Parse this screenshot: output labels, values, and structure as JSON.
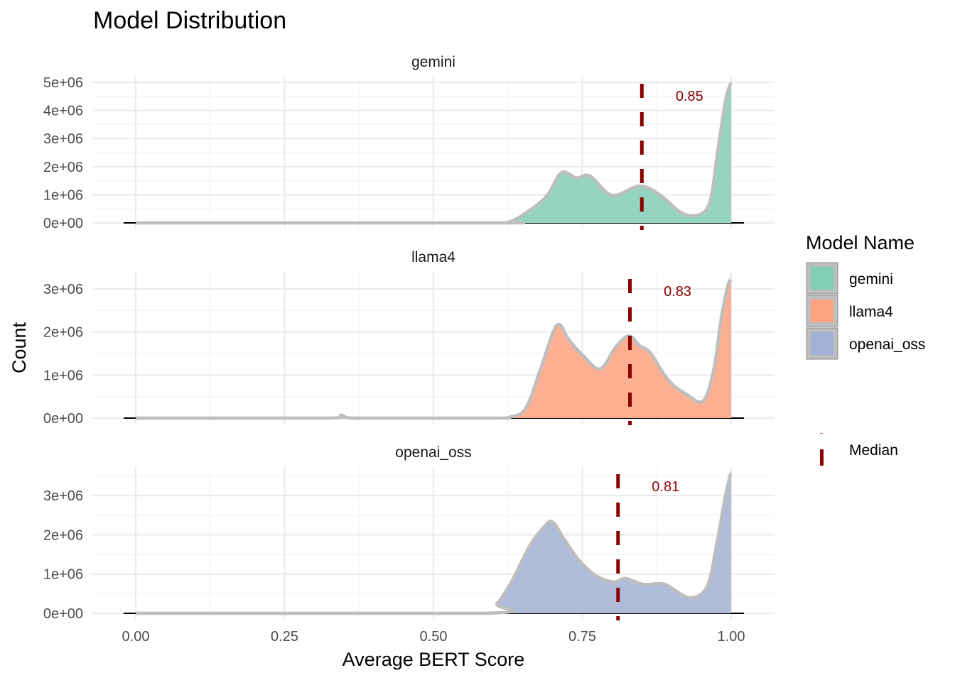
{
  "chart_data": {
    "type": "area",
    "title": "Model Distribution",
    "xlabel": "Average BERT Score",
    "ylabel": "Count",
    "xlim": [
      0,
      1
    ],
    "x_ticks": [
      0,
      0.25,
      0.5,
      0.75,
      1
    ],
    "x_tick_labels": [
      "0.00",
      "0.25",
      "0.50",
      "0.75",
      "1.00"
    ],
    "grid": true,
    "legend": {
      "title": "Model Name",
      "placement": "right",
      "entries": [
        {
          "label": "gemini",
          "color": "#66c2a5"
        },
        {
          "label": "llama4",
          "color": "#fc8d62"
        },
        {
          "label": "openai_oss",
          "color": "#8da0cb"
        }
      ],
      "median_label": "Median",
      "median_color": "#8b0000"
    },
    "panels": [
      {
        "name": "gemini",
        "color": "#66c2a5",
        "ymax": 5000000,
        "y_ticks": [
          0,
          1000000,
          2000000,
          3000000,
          4000000,
          5000000
        ],
        "y_tick_labels": [
          "0e+00",
          "1e+06",
          "2e+06",
          "3e+06",
          "4e+06",
          "5e+06"
        ],
        "median": 0.85,
        "median_label": "0.85",
        "x": [
          0,
          0.6,
          0.625,
          0.655,
          0.69,
          0.715,
          0.74,
          0.763,
          0.8,
          0.846,
          0.88,
          0.917,
          0.947,
          0.965,
          0.977,
          0.99,
          0.998,
          1.0
        ],
        "y": [
          0,
          0,
          20000,
          350000,
          950000,
          1790000,
          1600000,
          1670000,
          980000,
          1310000,
          1000000,
          350000,
          300000,
          800000,
          2500000,
          4300000,
          4900000,
          4900000
        ]
      },
      {
        "name": "llama4",
        "color": "#fc8d62",
        "ymax": 3300000,
        "y_ticks": [
          0,
          1000000,
          2000000,
          3000000
        ],
        "y_tick_labels": [
          "0e+00",
          "1e+06",
          "2e+06",
          "3e+06"
        ],
        "median": 0.83,
        "median_label": "0.83",
        "x": [
          0,
          0.32,
          0.345,
          0.37,
          0.6,
          0.63,
          0.655,
          0.68,
          0.7,
          0.712,
          0.727,
          0.75,
          0.78,
          0.805,
          0.828,
          0.846,
          0.864,
          0.894,
          0.924,
          0.953,
          0.971,
          0.983,
          0.995,
          1.0
        ],
        "y": [
          0,
          0,
          70000,
          0,
          0,
          30000,
          230000,
          1140000,
          1960000,
          2170000,
          1830000,
          1470000,
          1140000,
          1630000,
          1910000,
          1680000,
          1520000,
          890000,
          560000,
          400000,
          1140000,
          2290000,
          3100000,
          3200000
        ]
      },
      {
        "name": "openai_oss",
        "color": "#8da0cb",
        "ymax": 3600000,
        "y_ticks": [
          0,
          1000000,
          2000000,
          3000000
        ],
        "y_tick_labels": [
          "0e+00",
          "1e+06",
          "2e+06",
          "3e+06"
        ],
        "median": 0.81,
        "median_label": "0.81",
        "x": [
          0,
          0.584,
          0.607,
          0.631,
          0.661,
          0.685,
          0.7,
          0.72,
          0.745,
          0.775,
          0.804,
          0.822,
          0.852,
          0.888,
          0.93,
          0.96,
          0.977,
          0.99,
          0.998,
          1.0
        ],
        "y": [
          0,
          0,
          250000,
          800000,
          1700000,
          2190000,
          2330000,
          1880000,
          1340000,
          940000,
          800000,
          890000,
          740000,
          740000,
          400000,
          700000,
          1880000,
          2970000,
          3500000,
          3550000
        ]
      }
    ]
  }
}
